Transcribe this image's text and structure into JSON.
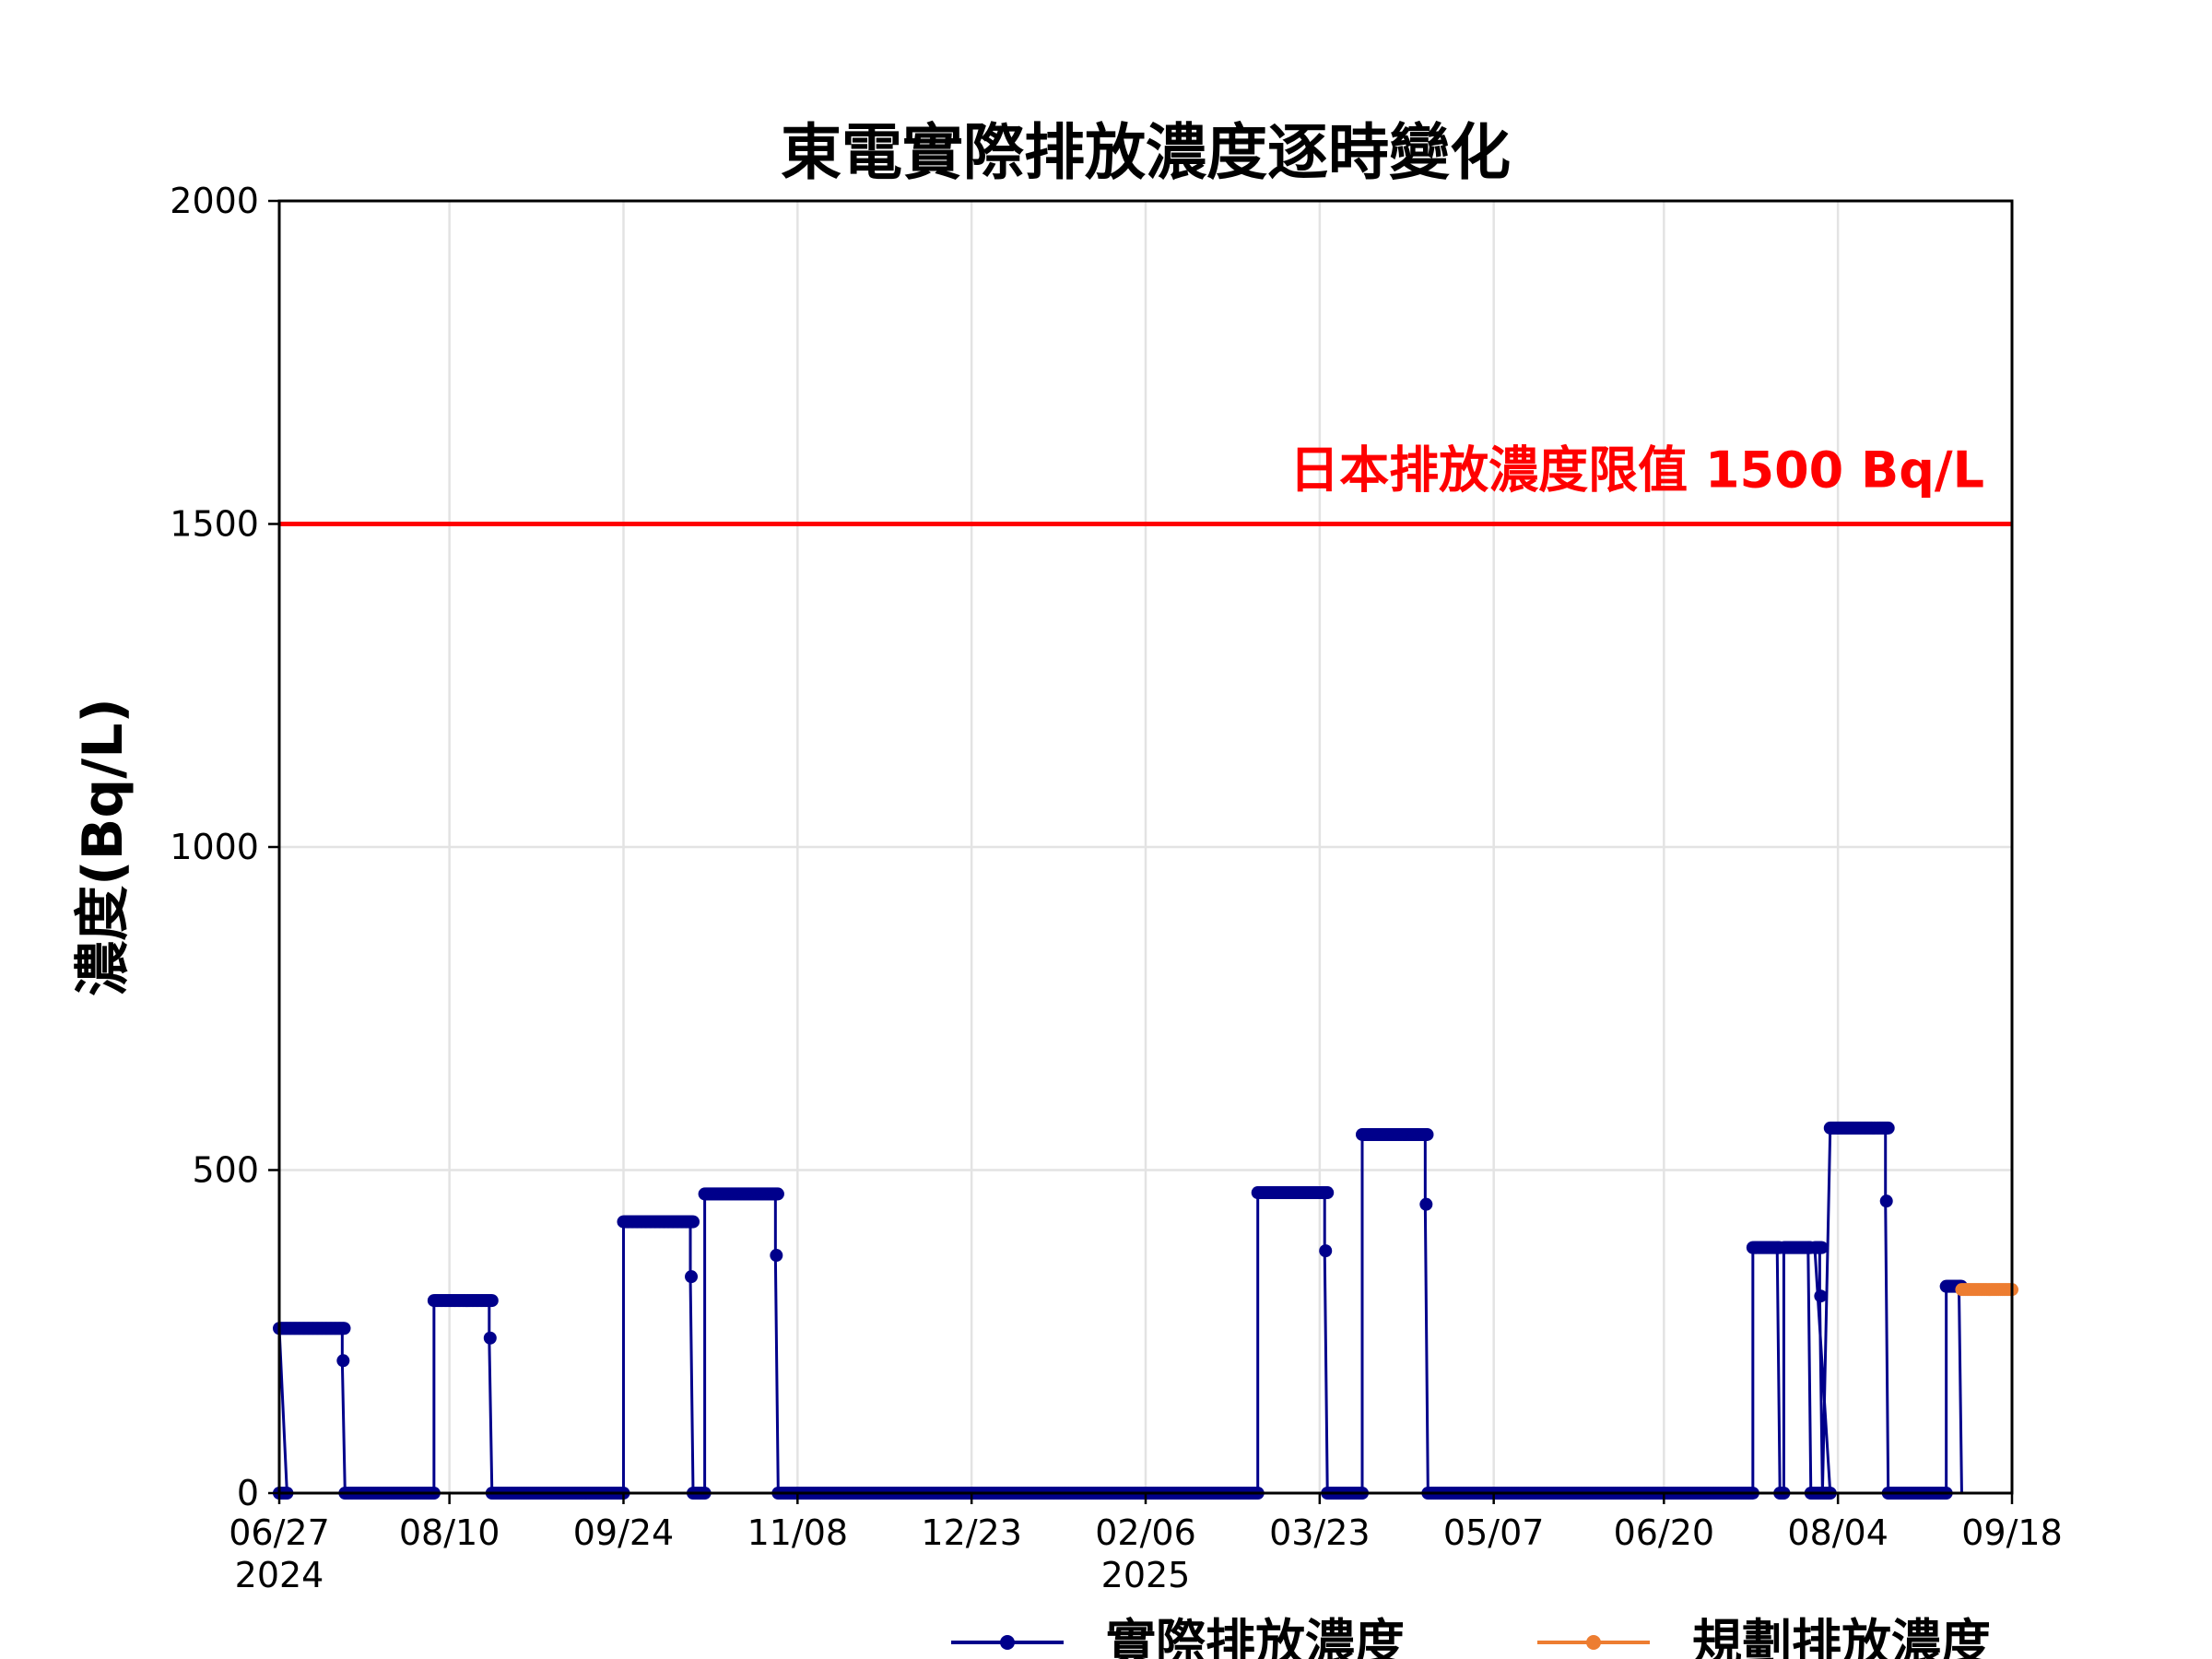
{
  "chart_data": {
    "type": "line",
    "title": "東電實際排放濃度逐時變化",
    "ylabel": "濃度(Bq/L)",
    "xlabel": "",
    "ylim": [
      0,
      2000
    ],
    "xlim": [
      "2024-06-27",
      "2025-09-18"
    ],
    "yticks": [
      0,
      500,
      1000,
      1500,
      2000
    ],
    "xticks": [
      {
        "date": "2024-06-27",
        "label": "06/27",
        "sublabel": "2024"
      },
      {
        "date": "2024-08-10",
        "label": "08/10",
        "sublabel": ""
      },
      {
        "date": "2024-09-24",
        "label": "09/24",
        "sublabel": ""
      },
      {
        "date": "2024-11-08",
        "label": "11/08",
        "sublabel": ""
      },
      {
        "date": "2024-12-23",
        "label": "12/23",
        "sublabel": ""
      },
      {
        "date": "2025-02-06",
        "label": "02/06",
        "sublabel": "2025"
      },
      {
        "date": "2025-03-23",
        "label": "03/23",
        "sublabel": ""
      },
      {
        "date": "2025-05-07",
        "label": "05/07",
        "sublabel": ""
      },
      {
        "date": "2025-06-20",
        "label": "06/20",
        "sublabel": ""
      },
      {
        "date": "2025-08-04",
        "label": "08/04",
        "sublabel": ""
      },
      {
        "date": "2025-09-18",
        "label": "09/18",
        "sublabel": ""
      }
    ],
    "grid": true,
    "limit_line": {
      "value": 1500,
      "label": "日本排放濃度限值 1500 Bq/L",
      "color": "#ff0000"
    },
    "legend_position": "bottom-right",
    "series": [
      {
        "name": "實際排放濃度",
        "color": "#00008b",
        "segments": [
          {
            "start": "2024-06-27",
            "end": "2024-07-14",
            "value": 255,
            "tail": 205
          },
          {
            "start": "2024-08-06",
            "end": "2024-08-21",
            "value": 298,
            "tail": 240
          },
          {
            "start": "2024-09-24",
            "end": "2024-10-12",
            "value": 420,
            "tail": 335
          },
          {
            "start": "2024-10-15",
            "end": "2024-11-03",
            "value": 463,
            "tail": 368
          },
          {
            "start": "2025-03-07",
            "end": "2025-03-25",
            "value": 465,
            "tail": 375
          },
          {
            "start": "2025-04-03",
            "end": "2025-04-20",
            "value": 555,
            "tail": 447
          },
          {
            "start": "2025-07-13",
            "end": "2025-07-20",
            "value": 380,
            "tail": 380
          },
          {
            "start": "2025-07-21",
            "end": "2025-07-28",
            "value": 380,
            "tail": 380
          },
          {
            "start": "2025-07-29",
            "end": "2025-07-31",
            "value": 380,
            "tail": 305
          },
          {
            "start": "2025-08-02",
            "end": "2025-08-17",
            "value": 565,
            "tail": 452
          },
          {
            "start": "2025-09-01",
            "end": "2025-09-05",
            "value": 320,
            "tail": 320
          }
        ],
        "zero_ranges": [
          [
            "2024-06-27",
            "2024-06-29"
          ],
          [
            "2024-07-14",
            "2024-08-06"
          ],
          [
            "2024-08-21",
            "2024-09-24"
          ],
          [
            "2024-10-12",
            "2024-10-15"
          ],
          [
            "2024-11-03",
            "2025-03-07"
          ],
          [
            "2025-03-25",
            "2025-04-03"
          ],
          [
            "2025-04-20",
            "2025-07-13"
          ],
          [
            "2025-07-20",
            "2025-07-21"
          ],
          [
            "2025-07-28",
            "2025-08-02"
          ],
          [
            "2025-08-17",
            "2025-09-01"
          ]
        ]
      },
      {
        "name": "規劃排放濃度",
        "color": "#ed7d31",
        "points": [
          {
            "x": "2025-09-05",
            "y": 315
          },
          {
            "x": "2025-09-18",
            "y": 315
          }
        ]
      }
    ]
  }
}
